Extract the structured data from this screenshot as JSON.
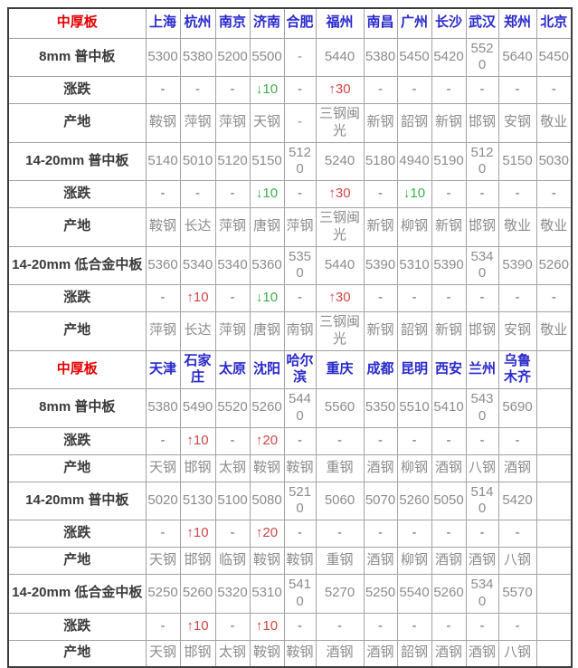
{
  "colors": {
    "section_title_red": "#e60000",
    "city_blue": "#2929cc",
    "value_gray": "#8c8c8c",
    "up_red": "#d04545",
    "down_green": "#3cae4c",
    "dash_green": "#4f7a4f"
  },
  "sections": [
    {
      "title": "中厚板",
      "cities": [
        "上海",
        "杭州",
        "南京",
        "济南",
        "合肥",
        "福州",
        "南昌",
        "广州",
        "长沙",
        "武汉",
        "郑州",
        "北京"
      ],
      "rows": [
        {
          "label": "8mm 普中板",
          "type": "price",
          "values": [
            "5300",
            "5380",
            "5200",
            "5500",
            "-",
            "5440",
            "5380",
            "5450",
            "5420",
            "5520",
            "5640",
            "5450"
          ]
        },
        {
          "label": "涨跌",
          "type": "change",
          "values": [
            "-",
            "-",
            "-",
            "↓10",
            "-",
            "↑30",
            "-",
            "-",
            "-",
            "-",
            "-",
            "-"
          ]
        },
        {
          "label": "产地",
          "type": "origin",
          "values": [
            "鞍钢",
            "萍钢",
            "萍钢",
            "天钢",
            "-",
            "三钢闽光",
            "新钢",
            "韶钢",
            "新钢",
            "邯钢",
            "安钢",
            "敬业"
          ]
        },
        {
          "label": "14-20mm 普中板",
          "type": "price",
          "values": [
            "5140",
            "5010",
            "5120",
            "5150",
            "5120",
            "5240",
            "5180",
            "4940",
            "5190",
            "5120",
            "5150",
            "5030"
          ]
        },
        {
          "label": "涨跌",
          "type": "change",
          "values": [
            "-",
            "-",
            "-",
            "↓10",
            "-",
            "↑30",
            "-",
            "↓10",
            "-",
            "-",
            "-",
            "-"
          ]
        },
        {
          "label": "产地",
          "type": "origin",
          "values": [
            "鞍钢",
            "长达",
            "萍钢",
            "唐钢",
            "萍钢",
            "三钢闽光",
            "新钢",
            "柳钢",
            "新钢",
            "邯钢",
            "敬业",
            "敬业"
          ]
        },
        {
          "label": "14-20mm 低合金中板",
          "type": "price",
          "values": [
            "5360",
            "5340",
            "5340",
            "5360",
            "5350",
            "5440",
            "5390",
            "5310",
            "5390",
            "5340",
            "5390",
            "5260"
          ]
        },
        {
          "label": "涨跌",
          "type": "change",
          "values": [
            "-",
            "↑10",
            "-",
            "↓10",
            "-",
            "↑30",
            "-",
            "-",
            "-",
            "-",
            "-",
            "-"
          ]
        },
        {
          "label": "产地",
          "type": "origin",
          "values": [
            "萍钢",
            "长达",
            "萍钢",
            "唐钢",
            "南钢",
            "三钢闽光",
            "新钢",
            "韶钢",
            "新钢",
            "邯钢",
            "安钢",
            "敬业"
          ]
        }
      ]
    },
    {
      "title": "中厚板",
      "cities": [
        "天津",
        "石家庄",
        "太原",
        "沈阳",
        "哈尔滨",
        "重庆",
        "成都",
        "昆明",
        "西安",
        "兰州",
        "乌鲁木齐",
        ""
      ],
      "rows": [
        {
          "label": "8mm 普中板",
          "type": "price",
          "values": [
            "5380",
            "5490",
            "5520",
            "5260",
            "5440",
            "5560",
            "5350",
            "5510",
            "5410",
            "5430",
            "5690",
            ""
          ]
        },
        {
          "label": "涨跌",
          "type": "change",
          "values": [
            "-",
            "↑10",
            "-",
            "↑20",
            "-",
            "-",
            "-",
            "-",
            "-",
            "-",
            "-",
            ""
          ]
        },
        {
          "label": "产地",
          "type": "origin",
          "values": [
            "天钢",
            "邯钢",
            "太钢",
            "鞍钢",
            "鞍钢",
            "重钢",
            "酒钢",
            "柳钢",
            "酒钢",
            "八钢",
            "酒钢",
            ""
          ]
        },
        {
          "label": "14-20mm 普中板",
          "type": "price",
          "values": [
            "5020",
            "5130",
            "5100",
            "5080",
            "5210",
            "5060",
            "5070",
            "5260",
            "5050",
            "5140",
            "5420",
            ""
          ]
        },
        {
          "label": "涨跌",
          "type": "change",
          "values": [
            "-",
            "↑10",
            "-",
            "↑20",
            "-",
            "-",
            "-",
            "-",
            "-",
            "-",
            "-",
            ""
          ]
        },
        {
          "label": "产地",
          "type": "origin",
          "values": [
            "天钢",
            "邯钢",
            "临钢",
            "鞍钢",
            "鞍钢",
            "重钢",
            "酒钢",
            "柳钢",
            "酒钢",
            "酒钢",
            "八钢",
            ""
          ]
        },
        {
          "label": "14-20mm 低合金中板",
          "type": "price",
          "values": [
            "5250",
            "5260",
            "5320",
            "5310",
            "5410",
            "5270",
            "5250",
            "5540",
            "5260",
            "5340",
            "5570",
            ""
          ]
        },
        {
          "label": "涨跌",
          "type": "change",
          "values": [
            "-",
            "↑10",
            "-",
            "↑10",
            "-",
            "-",
            "-",
            "-",
            "-",
            "-",
            "-",
            ""
          ]
        },
        {
          "label": "产地",
          "type": "origin",
          "values": [
            "天钢",
            "邯钢",
            "太钢",
            "鞍钢",
            "鞍钢",
            "酒钢",
            "酒钢",
            "韶钢",
            "酒钢",
            "酒钢",
            "八钢",
            ""
          ]
        }
      ]
    }
  ]
}
